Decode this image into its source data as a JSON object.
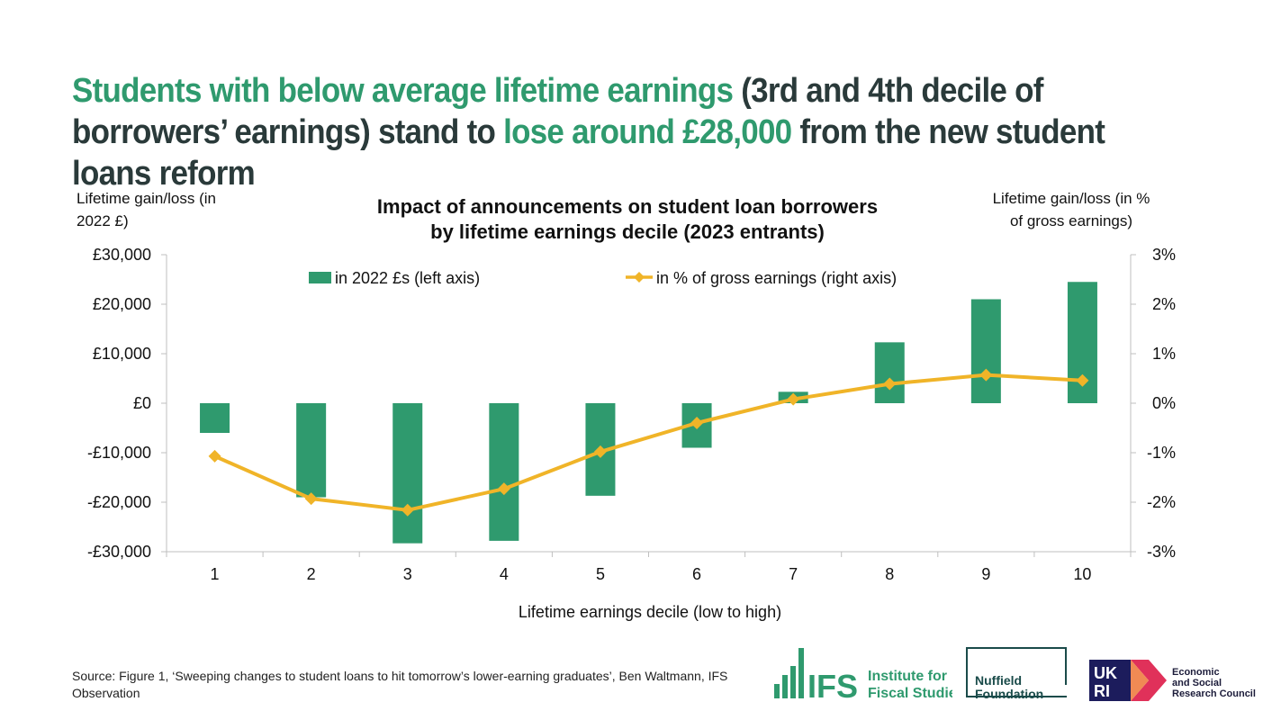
{
  "headline": {
    "part1": "Students with below average lifetime earnings",
    "part2": " (3rd and 4th decile of borrowers’ earnings) stand to ",
    "part3": "lose around £28,000",
    "part4": " from the new student loans reform"
  },
  "colors": {
    "bar": "#2f9a6e",
    "line": "#f0b428",
    "headline_accent": "#2f9a6e",
    "grid_axis": "#bfbfbf"
  },
  "chart_data": {
    "type": "bar",
    "title": "Impact of announcements on student loan borrowers by lifetime earnings decile (2023 entrants)",
    "title_line1": "Impact of announcements on student loan borrowers",
    "title_line2": "by lifetime earnings decile (2023 entrants)",
    "xlabel": "Lifetime earnings decile (low to high)",
    "ylabel_left_line1": "Lifetime gain/loss (in",
    "ylabel_left_line2": "2022 £)",
    "ylabel_right_line1": "Lifetime gain/loss (in %",
    "ylabel_right_line2": "of gross earnings)",
    "categories": [
      "1",
      "2",
      "3",
      "4",
      "5",
      "6",
      "7",
      "8",
      "9",
      "10"
    ],
    "ylim_left": [
      -30000,
      30000
    ],
    "ylim_right": [
      -3,
      3
    ],
    "left_ticks": [
      30000,
      20000,
      10000,
      0,
      -10000,
      -20000,
      -30000
    ],
    "left_tick_labels": [
      "£30,000",
      "£20,000",
      "£10,000",
      "£0",
      "-£10,000",
      "-£20,000",
      "-£30,000"
    ],
    "right_ticks": [
      3,
      2,
      1,
      0,
      -1,
      -2,
      -3
    ],
    "right_tick_labels": [
      "3%",
      "2%",
      "1%",
      "0%",
      "-1%",
      "-2%",
      "-3%"
    ],
    "legend_placement": "top",
    "grid": false,
    "series": [
      {
        "name": "in 2022 £s (left axis)",
        "type": "bar",
        "axis": "left",
        "values": [
          -6000,
          -19000,
          -28300,
          -27800,
          -18700,
          -9000,
          2300,
          12300,
          21000,
          24500
        ]
      },
      {
        "name": "in % of gross earnings (right axis)",
        "type": "line",
        "axis": "right",
        "marker": "diamond",
        "values": [
          -1.07,
          -1.93,
          -2.16,
          -1.73,
          -0.98,
          -0.4,
          0.08,
          0.39,
          0.57,
          0.46
        ]
      }
    ]
  },
  "source": "Source: Figure 1, ‘Sweeping changes to student loans to hit tomorrow’s lower-earning graduates’, Ben Waltmann, IFS Observation",
  "logos": {
    "ifs_short": "IFS",
    "ifs_line1": "Institute for",
    "ifs_line2": "Fiscal Studies",
    "nuffield_line1": "Nuffield",
    "nuffield_line2": "Foundation",
    "ukri_line1": "Economic",
    "ukri_line2": "and Social",
    "ukri_line3": "Research Council"
  }
}
